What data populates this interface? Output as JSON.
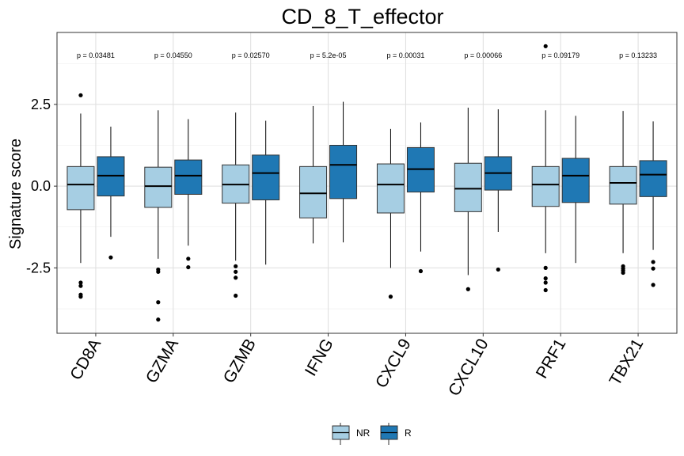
{
  "chart_data": {
    "type": "boxplot",
    "title": "CD_8_T_effector",
    "ylabel": "Signature score",
    "xlabel": "",
    "ylim": [
      -4.5,
      4.7
    ],
    "yticks": [
      -2.5,
      0.0,
      2.5
    ],
    "ytick_labels": [
      "-2.5",
      "0.0",
      "2.5"
    ],
    "grid": true,
    "legend_position": "bottom",
    "categories": [
      "CD8A",
      "GZMA",
      "GZMB",
      "IFNG",
      "CXCL9",
      "CXCL10",
      "PRF1",
      "TBX21"
    ],
    "pvalues": [
      "p = 0.03481",
      "p = 0.04550",
      "p = 0.02570",
      "p = 5.2e-05",
      "p = 0.00031",
      "p = 0.00066",
      "p = 0.09179",
      "p = 0.13233"
    ],
    "series": [
      {
        "name": "NR",
        "color": "#a6cee3",
        "boxes": [
          {
            "q1": -0.72,
            "median": 0.05,
            "q3": 0.6,
            "whisker_low": -2.35,
            "whisker_high": 2.22,
            "outliers": [
              2.78,
              -2.95,
              -3.05,
              -3.32,
              -3.38
            ]
          },
          {
            "q1": -0.65,
            "median": 0.0,
            "q3": 0.58,
            "whisker_low": -2.22,
            "whisker_high": 2.32,
            "outliers": [
              -2.55,
              -2.62,
              -3.55,
              -4.08
            ]
          },
          {
            "q1": -0.52,
            "median": 0.05,
            "q3": 0.65,
            "whisker_low": -2.28,
            "whisker_high": 2.25,
            "outliers": [
              -2.45,
              -2.62,
              -2.8,
              -3.35
            ]
          },
          {
            "q1": -0.97,
            "median": -0.22,
            "q3": 0.6,
            "whisker_low": -1.75,
            "whisker_high": 2.45,
            "outliers": []
          },
          {
            "q1": -0.82,
            "median": 0.05,
            "q3": 0.68,
            "whisker_low": -2.5,
            "whisker_high": 1.75,
            "outliers": [
              -3.38
            ]
          },
          {
            "q1": -0.78,
            "median": -0.08,
            "q3": 0.7,
            "whisker_low": -2.72,
            "whisker_high": 2.4,
            "outliers": [
              -3.15
            ]
          },
          {
            "q1": -0.62,
            "median": 0.05,
            "q3": 0.6,
            "whisker_low": -2.05,
            "whisker_high": 2.32,
            "outliers": [
              4.28,
              -2.5,
              -2.82,
              -2.95,
              -3.18
            ]
          },
          {
            "q1": -0.55,
            "median": 0.1,
            "q3": 0.6,
            "whisker_low": -2.05,
            "whisker_high": 2.3,
            "outliers": [
              -2.45,
              -2.52,
              -2.58,
              -2.65
            ]
          }
        ]
      },
      {
        "name": "R",
        "color": "#1f78b4",
        "boxes": [
          {
            "q1": -0.3,
            "median": 0.32,
            "q3": 0.9,
            "whisker_low": -1.55,
            "whisker_high": 1.82,
            "outliers": [
              -2.18
            ]
          },
          {
            "q1": -0.25,
            "median": 0.32,
            "q3": 0.8,
            "whisker_low": -1.82,
            "whisker_high": 2.05,
            "outliers": [
              -2.22,
              -2.48
            ]
          },
          {
            "q1": -0.42,
            "median": 0.4,
            "q3": 0.95,
            "whisker_low": -2.4,
            "whisker_high": 2.0,
            "outliers": []
          },
          {
            "q1": -0.38,
            "median": 0.65,
            "q3": 1.25,
            "whisker_low": -1.72,
            "whisker_high": 2.58,
            "outliers": []
          },
          {
            "q1": -0.18,
            "median": 0.52,
            "q3": 1.18,
            "whisker_low": -2.0,
            "whisker_high": 1.95,
            "outliers": [
              -2.6
            ]
          },
          {
            "q1": -0.12,
            "median": 0.4,
            "q3": 0.9,
            "whisker_low": -1.4,
            "whisker_high": 2.35,
            "outliers": [
              -2.55
            ]
          },
          {
            "q1": -0.5,
            "median": 0.32,
            "q3": 0.85,
            "whisker_low": -2.35,
            "whisker_high": 2.15,
            "outliers": []
          },
          {
            "q1": -0.32,
            "median": 0.35,
            "q3": 0.78,
            "whisker_low": -1.95,
            "whisker_high": 1.98,
            "outliers": [
              -2.32,
              -2.52,
              -3.02
            ]
          }
        ]
      }
    ]
  }
}
